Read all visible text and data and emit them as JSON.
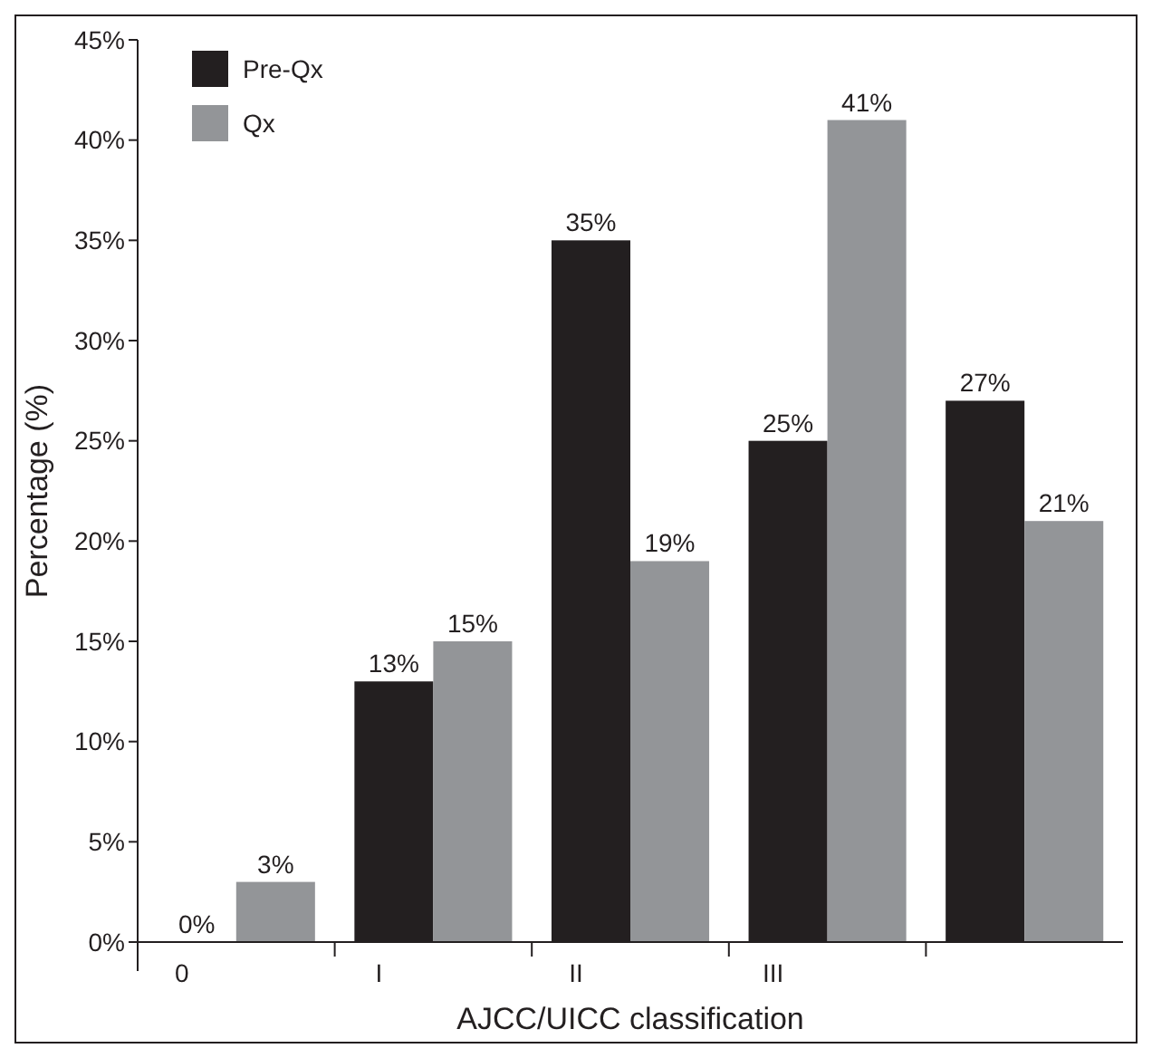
{
  "chart_data": {
    "type": "bar",
    "xlabel": "AJCC/UICC classification",
    "ylabel": "Percentage (%)",
    "categories": [
      "0",
      "I",
      "II",
      "III",
      null
    ],
    "series": [
      {
        "name": "Pre-Qx",
        "color": "#231f20",
        "values": [
          0,
          13,
          35,
          25,
          27
        ],
        "value_labels": [
          "0%",
          "13%",
          "35%",
          "25%",
          "27%"
        ]
      },
      {
        "name": "Qx",
        "color": "#939598",
        "values": [
          3,
          15,
          19,
          41,
          21
        ],
        "value_labels": [
          "3%",
          "15%",
          "19%",
          "41%",
          "21%"
        ]
      }
    ],
    "ylim": [
      0,
      45
    ],
    "yticks": [
      {
        "value": 0,
        "label": "0%"
      },
      {
        "value": 5,
        "label": "5%"
      },
      {
        "value": 10,
        "label": "10%"
      },
      {
        "value": 15,
        "label": "15%"
      },
      {
        "value": 20,
        "label": "20%"
      },
      {
        "value": 25,
        "label": "25%"
      },
      {
        "value": 30,
        "label": "30%"
      },
      {
        "value": 35,
        "label": "35%"
      },
      {
        "value": 40,
        "label": "40%"
      },
      {
        "value": 45,
        "label": "45%"
      }
    ],
    "grid": false,
    "legend": "top left"
  }
}
